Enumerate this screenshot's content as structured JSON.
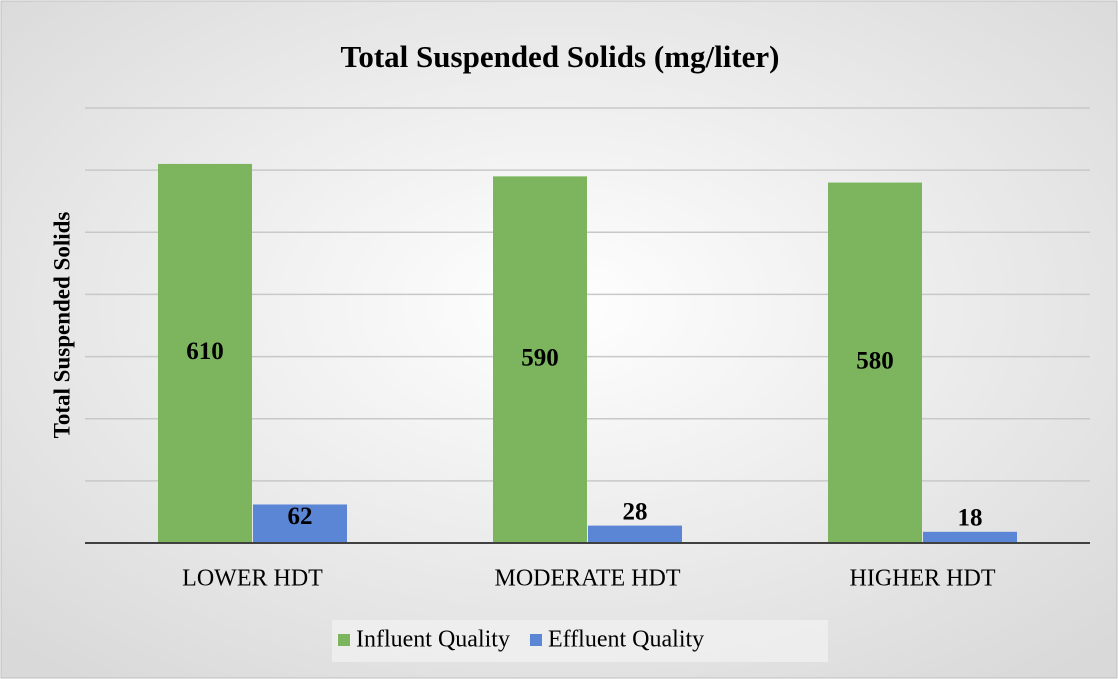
{
  "chart_data": {
    "type": "bar",
    "title": "Total Suspended Solids (mg/liter)",
    "ylabel": "Total Suspended Solids",
    "categories": [
      "LOWER HDT",
      "MODERATE HDT",
      "HIGHER HDT"
    ],
    "series": [
      {
        "name": "Influent Quality",
        "color": "#7cb55e",
        "values": [
          610,
          590,
          580
        ]
      },
      {
        "name": "Effluent Quality",
        "color": "#5b86d6",
        "values": [
          62,
          28,
          18
        ]
      }
    ],
    "ylim": [
      0,
      700
    ],
    "yticks": [
      0,
      100,
      200,
      300,
      400,
      500,
      600,
      700
    ],
    "grid": true,
    "legend": "bottom"
  }
}
